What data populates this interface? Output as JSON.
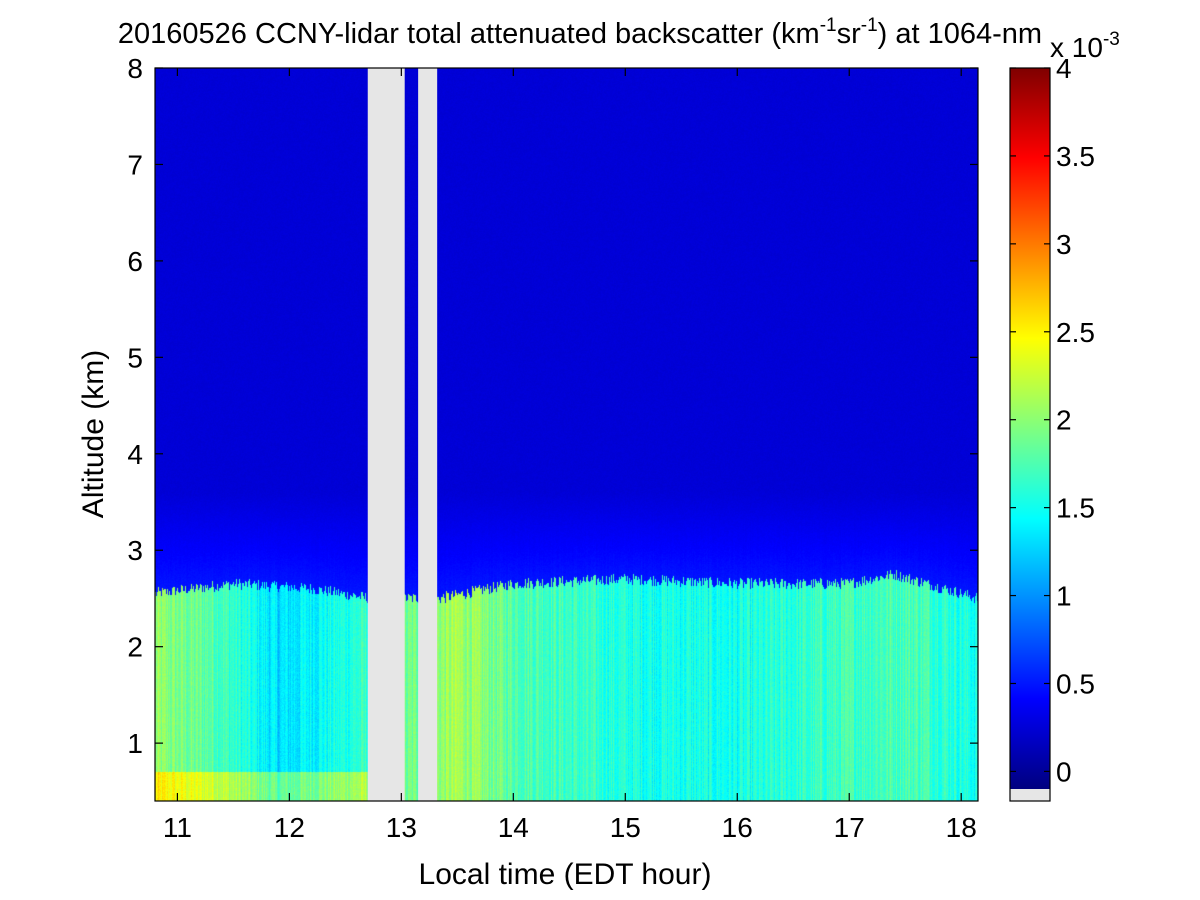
{
  "chart_data": {
    "type": "heatmap",
    "title": {
      "date": "20160526",
      "pre": " CCNY-lidar total attenuated backscatter (km",
      "sup1": "-1",
      "mid": "sr",
      "sup2": "-1",
      "post": ") at 1064-nm"
    },
    "xlabel": "Local time (EDT hour)",
    "ylabel": "Altitude (km)",
    "xlim": [
      10.8,
      18.15
    ],
    "ylim": [
      0.4,
      8
    ],
    "xticks": [
      11,
      12,
      13,
      14,
      15,
      16,
      17,
      18
    ],
    "yticks": [
      1,
      2,
      3,
      4,
      5,
      6,
      7,
      8
    ],
    "colorbar": {
      "colormap": "jet",
      "range": [
        -0.0001,
        0.004
      ],
      "ticks": [
        "0",
        "0.5",
        "1",
        "1.5",
        "2",
        "2.5",
        "3",
        "3.5",
        "4"
      ],
      "tick_values": [
        0,
        0.5,
        1,
        1.5,
        2,
        2.5,
        3,
        3.5,
        4
      ],
      "exponent_prefix": "x 10",
      "exponent": "-3",
      "missing_color": "#e6e6e6"
    },
    "missing_data_intervals_hour": [
      [
        12.7,
        13.03
      ],
      [
        13.15,
        13.32
      ]
    ],
    "field": {
      "boundary_layer_top_km": [
        {
          "hour": 10.8,
          "km": 2.55
        },
        {
          "hour": 11.5,
          "km": 2.65
        },
        {
          "hour": 12.2,
          "km": 2.6
        },
        {
          "hour": 12.7,
          "km": 2.5
        },
        {
          "hour": 13.35,
          "km": 2.5
        },
        {
          "hour": 14.0,
          "km": 2.65
        },
        {
          "hour": 15.0,
          "km": 2.7
        },
        {
          "hour": 16.0,
          "km": 2.65
        },
        {
          "hour": 17.0,
          "km": 2.65
        },
        {
          "hour": 17.4,
          "km": 2.75
        },
        {
          "hour": 18.15,
          "km": 2.5
        }
      ],
      "boundary_layer_backscatter_e-3": [
        {
          "hour": 10.8,
          "value": 2.0
        },
        {
          "hour": 11.3,
          "value": 1.8
        },
        {
          "hour": 11.9,
          "value": 1.3
        },
        {
          "hour": 12.6,
          "value": 1.6
        },
        {
          "hour": 13.5,
          "value": 2.1
        },
        {
          "hour": 14.0,
          "value": 1.8
        },
        {
          "hour": 15.0,
          "value": 1.55
        },
        {
          "hour": 16.0,
          "value": 1.5
        },
        {
          "hour": 17.0,
          "value": 1.7
        },
        {
          "hour": 17.6,
          "value": 1.75
        },
        {
          "hour": 18.15,
          "value": 1.5
        }
      ],
      "free_troposphere_backscatter_e-3": 0.25,
      "aerosol_layer_backscatter_e-3": 0.5,
      "aerosol_layer_km": [
        2.6,
        3.6
      ]
    }
  }
}
